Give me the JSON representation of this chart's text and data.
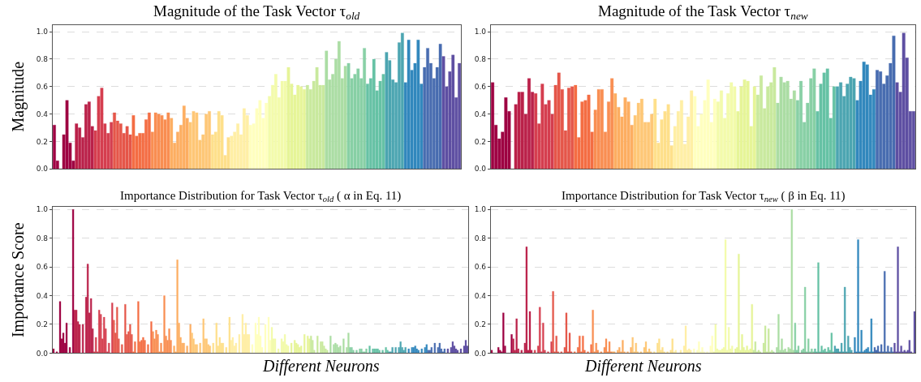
{
  "chart_data": [
    {
      "type": "bar",
      "title": "Magnitude of the Task Vector τ$_{old}$",
      "ylabel": "Magnitude",
      "tick_labels": "y",
      "grid": "y",
      "legend": false,
      "ylim": [
        0,
        1.05
      ],
      "yticks": [
        {
          "value": 0,
          "label": "0.0"
        },
        {
          "value": 0.2,
          "label": "0.2"
        },
        {
          "value": 0.4,
          "label": "0.4"
        },
        {
          "value": 0.6,
          "label": "0.6"
        },
        {
          "value": 0.8,
          "label": "0.8"
        },
        {
          "value": 1.0,
          "label": "1.0"
        }
      ],
      "colors": [
        "#9e0142",
        "#9e0142",
        "#9e0142",
        "#9e0142",
        "#9e0142",
        "#9e0142",
        "#9e0142",
        "#ba2049",
        "#ba2049",
        "#ba2049",
        "#ba2049",
        "#ba2049",
        "#ba2049",
        "#d53e4f",
        "#d53e4f",
        "#d53e4f",
        "#d53e4f",
        "#d53e4f",
        "#d53e4f",
        "#e55649",
        "#e55649",
        "#e55649",
        "#e55649",
        "#e55649",
        "#e55649",
        "#f46d43",
        "#f46d43",
        "#f46d43",
        "#f46d43",
        "#f46d43",
        "#f46d43",
        "#f98e52",
        "#f98e52",
        "#f98e52",
        "#f98e52",
        "#f98e52",
        "#f98e52",
        "#fdae61",
        "#fdae61",
        "#fdae61",
        "#fdae61",
        "#fdae61",
        "#fdae61",
        "#fec776",
        "#fec776",
        "#fec776",
        "#fec776",
        "#fec776",
        "#fec776",
        "#fec776",
        "#fee08b",
        "#fee08b",
        "#fee08b",
        "#fee08b",
        "#fee08b",
        "#fee08b",
        "#ffefa5",
        "#ffefa5",
        "#ffefa5",
        "#ffefa5",
        "#ffefa5",
        "#ffefa5",
        "#ffffbf",
        "#ffffbf",
        "#ffffbf",
        "#ffffbf",
        "#ffffbf",
        "#ffffbf",
        "#f3fbab",
        "#f3fbab",
        "#f3fbab",
        "#f3fbab",
        "#f3fbab",
        "#f3fbab",
        "#e6f598",
        "#e6f598",
        "#e6f598",
        "#e6f598",
        "#e6f598",
        "#e6f598",
        "#c9e99e",
        "#c9e99e",
        "#c9e99e",
        "#c9e99e",
        "#c9e99e",
        "#c9e99e",
        "#abdda4",
        "#abdda4",
        "#abdda4",
        "#abdda4",
        "#abdda4",
        "#abdda4",
        "#abdda4",
        "#88d0a5",
        "#88d0a5",
        "#88d0a5",
        "#88d0a5",
        "#88d0a5",
        "#88d0a5",
        "#66c2a5",
        "#66c2a5",
        "#66c2a5",
        "#66c2a5",
        "#66c2a5",
        "#66c2a5",
        "#4ca5b1",
        "#4ca5b1",
        "#4ca5b1",
        "#4ca5b1",
        "#4ca5b1",
        "#4ca5b1",
        "#3288bd",
        "#3288bd",
        "#3288bd",
        "#3288bd",
        "#3288bd",
        "#3288bd",
        "#486cb0",
        "#486cb0",
        "#486cb0",
        "#486cb0",
        "#486cb0",
        "#486cb0",
        "#5e4fa2",
        "#5e4fa2",
        "#5e4fa2",
        "#5e4fa2",
        "#5e4fa2",
        "#5e4fa2"
      ],
      "categories": [
        null,
        null,
        null,
        null,
        null,
        null,
        null,
        null,
        null,
        null,
        null,
        null,
        null,
        null,
        null,
        null,
        null,
        null,
        null,
        null,
        null,
        null,
        null,
        null,
        null,
        null,
        null,
        null,
        null,
        null,
        null,
        null,
        null,
        null,
        null,
        null,
        null,
        null,
        null,
        null,
        null,
        null,
        null,
        null,
        null,
        null,
        null,
        null,
        null,
        null,
        null,
        null,
        null,
        null,
        null,
        null,
        null,
        null,
        null,
        null,
        null,
        null,
        null,
        null,
        null,
        null,
        null,
        null,
        null,
        null,
        null,
        null,
        null,
        null,
        null,
        null,
        null,
        null,
        null,
        null,
        null,
        null,
        null,
        null,
        null,
        null,
        null,
        null,
        null,
        null,
        null,
        null,
        null,
        null,
        null,
        null,
        null,
        null,
        null,
        null,
        null,
        null,
        null,
        null,
        null,
        null,
        null,
        null,
        null,
        null,
        null,
        null,
        null,
        null,
        null,
        null,
        null,
        null,
        null,
        null,
        null,
        null,
        null,
        null,
        null,
        null,
        null,
        null,
        null
      ],
      "values": [
        0.32,
        0.06,
        0,
        0.25,
        0.5,
        0.19,
        0.06,
        0.33,
        0.3,
        0.23,
        0.47,
        0.49,
        0.31,
        0.28,
        0.53,
        0.59,
        0.33,
        0.26,
        0.34,
        0.41,
        0.35,
        0.33,
        0.26,
        0.31,
        0.25,
        0.39,
        0.24,
        0.26,
        0.26,
        0.36,
        0.41,
        0.27,
        0.41,
        0.4,
        0.39,
        0.36,
        0.41,
        0.37,
        0.19,
        0.27,
        0.32,
        0.46,
        0.37,
        0.34,
        0.42,
        0.41,
        0.21,
        0.25,
        0.4,
        0.42,
        0.25,
        0.27,
        0.42,
        0.39,
        0.1,
        0.23,
        0.24,
        0.27,
        0.33,
        0.25,
        0.44,
        0.39,
        0.32,
        0.33,
        0.44,
        0.5,
        0.37,
        0.48,
        0.53,
        0.61,
        0.69,
        0.52,
        0.64,
        0.64,
        0.74,
        0.62,
        0.54,
        0.61,
        0.6,
        0.58,
        0.61,
        0.58,
        0.64,
        0.74,
        0.61,
        0.61,
        0.86,
        0.65,
        0.69,
        0.8,
        0.93,
        0.66,
        0.75,
        0.77,
        0.66,
        0.69,
        0.73,
        0.66,
        0.88,
        0.62,
        0.66,
        0.8,
        0.57,
        0.64,
        0.69,
        0.85,
        0.79,
        0.65,
        0.63,
        0.92,
        0.99,
        0.63,
        0.94,
        0.72,
        0.77,
        0.94,
        0.62,
        0.74,
        0.88,
        0.77,
        0.66,
        0.74,
        0.91,
        0.82,
        0.6,
        0.71,
        0.83,
        0.52,
        0.77
      ]
    },
    {
      "type": "bar",
      "title": "Magnitude of the Task Vector τ$_{new}$",
      "tick_labels": "y",
      "grid": "y",
      "legend": false,
      "ylim": [
        0,
        1.05
      ],
      "yticks": [
        {
          "value": 0,
          "label": "0.0"
        },
        {
          "value": 0.2,
          "label": "0.2"
        },
        {
          "value": 0.4,
          "label": "0.4"
        },
        {
          "value": 0.6,
          "label": "0.6"
        },
        {
          "value": 0.8,
          "label": "0.8"
        },
        {
          "value": 1.0,
          "label": "1.0"
        }
      ],
      "colors": [
        "#9e0142",
        "#9e0142",
        "#9e0142",
        "#9e0142",
        "#9e0142",
        "#9e0142",
        "#9e0142",
        "#ba2049",
        "#ba2049",
        "#ba2049",
        "#ba2049",
        "#ba2049",
        "#ba2049",
        "#d53e4f",
        "#d53e4f",
        "#d53e4f",
        "#d53e4f",
        "#d53e4f",
        "#d53e4f",
        "#e55649",
        "#e55649",
        "#e55649",
        "#e55649",
        "#e55649",
        "#e55649",
        "#f46d43",
        "#f46d43",
        "#f46d43",
        "#f46d43",
        "#f46d43",
        "#f46d43",
        "#f98e52",
        "#f98e52",
        "#f98e52",
        "#f98e52",
        "#f98e52",
        "#f98e52",
        "#fdae61",
        "#fdae61",
        "#fdae61",
        "#fdae61",
        "#fdae61",
        "#fdae61",
        "#fec776",
        "#fec776",
        "#fec776",
        "#fec776",
        "#fec776",
        "#fec776",
        "#fee08b",
        "#fee08b",
        "#fee08b",
        "#fee08b",
        "#fee08b",
        "#fee08b",
        "#ffefa5",
        "#ffefa5",
        "#ffefa5",
        "#ffefa5",
        "#ffefa5",
        "#ffefa5",
        "#ffffbf",
        "#ffffbf",
        "#ffffbf",
        "#ffffbf",
        "#ffffbf",
        "#ffffbf",
        "#ffffbf",
        "#f3fbab",
        "#f3fbab",
        "#f3fbab",
        "#f3fbab",
        "#f3fbab",
        "#f3fbab",
        "#e6f598",
        "#e6f598",
        "#e6f598",
        "#e6f598",
        "#e6f598",
        "#e6f598",
        "#c9e99e",
        "#c9e99e",
        "#c9e99e",
        "#c9e99e",
        "#c9e99e",
        "#c9e99e",
        "#abdda4",
        "#abdda4",
        "#abdda4",
        "#abdda4",
        "#abdda4",
        "#abdda4",
        "#88d0a5",
        "#88d0a5",
        "#88d0a5",
        "#88d0a5",
        "#88d0a5",
        "#88d0a5",
        "#66c2a5",
        "#66c2a5",
        "#66c2a5",
        "#66c2a5",
        "#66c2a5",
        "#66c2a5",
        "#4ca5b1",
        "#4ca5b1",
        "#4ca5b1",
        "#4ca5b1",
        "#4ca5b1",
        "#4ca5b1",
        "#3288bd",
        "#3288bd",
        "#3288bd",
        "#3288bd",
        "#3288bd",
        "#3288bd",
        "#486cb0",
        "#486cb0",
        "#486cb0",
        "#486cb0",
        "#486cb0",
        "#486cb0",
        "#5e4fa2",
        "#5e4fa2",
        "#5e4fa2",
        "#5e4fa2",
        "#5e4fa2",
        "#5e4fa2"
      ],
      "categories": [
        null,
        null,
        null,
        null,
        null,
        null,
        null,
        null,
        null,
        null,
        null,
        null,
        null,
        null,
        null,
        null,
        null,
        null,
        null,
        null,
        null,
        null,
        null,
        null,
        null,
        null,
        null,
        null,
        null,
        null,
        null,
        null,
        null,
        null,
        null,
        null,
        null,
        null,
        null,
        null,
        null,
        null,
        null,
        null,
        null,
        null,
        null,
        null,
        null,
        null,
        null,
        null,
        null,
        null,
        null,
        null,
        null,
        null,
        null,
        null,
        null,
        null,
        null,
        null,
        null,
        null,
        null,
        null,
        null,
        null,
        null,
        null,
        null,
        null,
        null,
        null,
        null,
        null,
        null,
        null,
        null,
        null,
        null,
        null,
        null,
        null,
        null,
        null,
        null,
        null,
        null,
        null,
        null,
        null,
        null,
        null,
        null,
        null,
        null,
        null,
        null,
        null,
        null,
        null,
        null,
        null,
        null,
        null,
        null,
        null,
        null,
        null,
        null,
        null,
        null,
        null,
        null,
        null,
        null,
        null,
        null,
        null,
        null,
        null,
        null,
        null,
        null,
        null
      ],
      "values": [
        0.63,
        0.32,
        0.22,
        0.27,
        0.52,
        0.42,
        0,
        0.47,
        0.56,
        0.56,
        0.4,
        0.66,
        0.56,
        0.55,
        0.33,
        0.62,
        0.47,
        0.5,
        0.4,
        0.61,
        0.7,
        0.58,
        0.28,
        0.59,
        0.6,
        0.61,
        0.23,
        0.49,
        0.5,
        0.54,
        0.27,
        0.43,
        0.58,
        0.58,
        0.27,
        0.49,
        0.66,
        0.55,
        0.45,
        0.38,
        0.52,
        0.49,
        0.32,
        0.39,
        0.48,
        0.51,
        0.34,
        0.34,
        0.4,
        0.51,
        0.19,
        0.36,
        0.42,
        0.47,
        0.17,
        0.31,
        0.42,
        0.5,
        0.18,
        0.38,
        0.57,
        0.53,
        0.31,
        0.4,
        0.5,
        0.65,
        0.34,
        0.51,
        0.49,
        0.57,
        0.37,
        0.55,
        0.63,
        0.6,
        0.42,
        0.6,
        0.65,
        0.64,
        0.31,
        0.6,
        0.54,
        0.68,
        0.44,
        0.6,
        0.63,
        0.74,
        0.48,
        0.67,
        0.63,
        0.64,
        0.51,
        0.57,
        0.5,
        0.64,
        0.34,
        0.48,
        0.66,
        0.73,
        0.42,
        0.62,
        0.7,
        0.73,
        0.37,
        0.6,
        0.6,
        0.63,
        0.53,
        0.62,
        0.67,
        0.66,
        0.5,
        0.64,
        0.78,
        0.76,
        0.54,
        0.58,
        0.72,
        0.71,
        0.62,
        0.68,
        0.77,
        0.97,
        0.63,
        0.56,
        0.99,
        0.81,
        0.42,
        0.42
      ]
    },
    {
      "type": "bar",
      "title": "Importance Distribution for Task Vector τ$_{old}$ ( α in Eq. 11)",
      "ylabel": "Importance Score",
      "xlabel": "Different Neurons",
      "tick_labels": "y",
      "grid": "y",
      "legend": false,
      "ylim": [
        0,
        1.02
      ],
      "yticks": [
        {
          "value": 0,
          "label": "0.0"
        },
        {
          "value": 0.2,
          "label": "0.2"
        },
        {
          "value": 0.4,
          "label": "0.4"
        },
        {
          "value": 0.6,
          "label": "0.6"
        },
        {
          "value": 0.8,
          "label": "0.8"
        },
        {
          "value": 1.0,
          "label": "1.0"
        }
      ],
      "colors": [
        "#9e0142",
        "#9e0142",
        "#9e0142",
        "#9e0142",
        "#9e0142",
        "#9e0142",
        "#9e0142",
        "#9e0142",
        "#9e0142",
        "#9e0142",
        "#9e0142",
        "#9e0142",
        "#9e0142",
        "#ba2049",
        "#ba2049",
        "#ba2049",
        "#ba2049",
        "#ba2049",
        "#ba2049",
        "#ba2049",
        "#ba2049",
        "#ba2049",
        "#ba2049",
        "#ba2049",
        "#ba2049",
        "#d53e4f",
        "#d53e4f",
        "#d53e4f",
        "#d53e4f",
        "#d53e4f",
        "#d53e4f",
        "#d53e4f",
        "#d53e4f",
        "#d53e4f",
        "#d53e4f",
        "#d53e4f",
        "#d53e4f",
        "#e55649",
        "#e55649",
        "#e55649",
        "#e55649",
        "#e55649",
        "#e55649",
        "#e55649",
        "#e55649",
        "#e55649",
        "#e55649",
        "#e55649",
        "#e55649",
        "#f46d43",
        "#f46d43",
        "#f46d43",
        "#f46d43",
        "#f46d43",
        "#f46d43",
        "#f46d43",
        "#f46d43",
        "#f46d43",
        "#f46d43",
        "#f46d43",
        "#f46d43",
        "#f98e52",
        "#f98e52",
        "#f98e52",
        "#f98e52",
        "#f98e52",
        "#f98e52",
        "#f98e52",
        "#f98e52",
        "#f98e52",
        "#f98e52",
        "#f98e52",
        "#f98e52",
        "#fdae61",
        "#fdae61",
        "#fdae61",
        "#fdae61",
        "#fdae61",
        "#fdae61",
        "#fdae61",
        "#fdae61",
        "#fdae61",
        "#fdae61",
        "#fdae61",
        "#fdae61",
        "#fec776",
        "#fec776",
        "#fec776",
        "#fec776",
        "#fec776",
        "#fec776",
        "#fec776",
        "#fec776",
        "#fec776",
        "#fec776",
        "#fec776",
        "#fec776",
        "#fee08b",
        "#fee08b",
        "#fee08b",
        "#fee08b",
        "#fee08b",
        "#fee08b",
        "#fee08b",
        "#fee08b",
        "#fee08b",
        "#fee08b",
        "#fee08b",
        "#fee08b",
        "#ffefa5",
        "#ffefa5",
        "#ffefa5",
        "#ffefa5",
        "#ffefa5",
        "#ffefa5",
        "#ffefa5",
        "#ffefa5",
        "#ffefa5",
        "#ffefa5",
        "#ffefa5",
        "#ffefa5",
        "#ffffbf",
        "#ffffbf",
        "#ffffbf",
        "#ffffbf",
        "#ffffbf",
        "#ffffbf",
        "#ffffbf",
        "#ffffbf",
        "#ffffbf",
        "#ffffbf",
        "#ffffbf",
        "#ffffbf",
        "#ffffbf",
        "#f3fbab",
        "#f3fbab",
        "#f3fbab",
        "#f3fbab",
        "#f3fbab",
        "#f3fbab",
        "#f3fbab",
        "#f3fbab",
        "#f3fbab",
        "#f3fbab",
        "#f3fbab",
        "#f3fbab",
        "#e6f598",
        "#e6f598",
        "#e6f598",
        "#e6f598",
        "#e6f598",
        "#e6f598",
        "#e6f598",
        "#e6f598",
        "#e6f598",
        "#e6f598",
        "#e6f598",
        "#e6f598",
        "#c9e99e",
        "#c9e99e",
        "#c9e99e",
        "#c9e99e",
        "#c9e99e",
        "#c9e99e",
        "#c9e99e",
        "#c9e99e",
        "#c9e99e",
        "#c9e99e",
        "#c9e99e",
        "#c9e99e",
        "#abdda4",
        "#abdda4",
        "#abdda4",
        "#abdda4",
        "#abdda4",
        "#abdda4",
        "#abdda4",
        "#abdda4",
        "#abdda4",
        "#abdda4",
        "#abdda4",
        "#abdda4",
        "#88d0a5",
        "#88d0a5",
        "#88d0a5",
        "#88d0a5",
        "#88d0a5",
        "#88d0a5",
        "#88d0a5",
        "#88d0a5",
        "#88d0a5",
        "#88d0a5",
        "#88d0a5",
        "#88d0a5",
        "#66c2a5",
        "#66c2a5",
        "#66c2a5",
        "#66c2a5",
        "#66c2a5",
        "#66c2a5",
        "#66c2a5",
        "#66c2a5",
        "#66c2a5",
        "#66c2a5",
        "#66c2a5",
        "#66c2a5",
        "#4ca5b1",
        "#4ca5b1",
        "#4ca5b1",
        "#4ca5b1",
        "#4ca5b1",
        "#4ca5b1",
        "#4ca5b1",
        "#4ca5b1",
        "#4ca5b1",
        "#4ca5b1",
        "#4ca5b1",
        "#4ca5b1",
        "#3288bd",
        "#3288bd",
        "#3288bd",
        "#3288bd",
        "#3288bd",
        "#3288bd",
        "#3288bd",
        "#3288bd",
        "#3288bd",
        "#3288bd",
        "#3288bd",
        "#3288bd",
        "#486cb0",
        "#486cb0",
        "#486cb0",
        "#486cb0",
        "#486cb0",
        "#486cb0",
        "#486cb0",
        "#486cb0",
        "#486cb0",
        "#486cb0",
        "#486cb0",
        "#486cb0",
        "#5e4fa2",
        "#5e4fa2",
        "#5e4fa2",
        "#5e4fa2",
        "#5e4fa2",
        "#5e4fa2",
        "#5e4fa2",
        "#5e4fa2",
        "#5e4fa2",
        "#5e4fa2",
        "#5e4fa2",
        "#5e4fa2",
        "#5e4fa2"
      ],
      "categories": [
        null,
        null,
        null,
        null,
        null,
        null,
        null,
        null,
        null,
        null,
        null,
        null,
        null,
        null,
        null,
        null,
        null,
        null,
        null,
        null,
        null,
        null,
        null,
        null,
        null,
        null,
        null,
        null,
        null,
        null,
        null,
        null,
        null,
        null,
        null,
        null,
        null,
        null,
        null,
        null,
        null,
        null,
        null,
        null,
        null,
        null,
        null,
        null,
        null,
        null,
        null,
        null,
        null,
        null,
        null,
        null,
        null,
        null,
        null,
        null,
        null,
        null,
        null,
        null,
        null,
        null,
        null,
        null,
        null,
        null,
        null,
        null,
        null,
        null,
        null,
        null,
        null,
        null,
        null,
        null,
        null,
        null,
        null,
        null,
        null,
        null,
        null,
        null,
        null,
        null,
        null,
        null,
        null,
        null,
        null,
        null,
        null,
        null,
        null,
        null,
        null,
        null,
        null,
        null,
        null,
        null,
        null,
        null,
        null,
        null,
        null,
        null,
        null,
        null,
        null,
        null,
        null,
        null,
        null,
        null,
        null,
        null,
        null,
        null,
        null,
        null,
        null,
        null,
        null,
        null,
        null,
        null,
        null,
        null,
        null,
        null,
        null,
        null,
        null,
        null,
        null,
        null,
        null,
        null,
        null,
        null,
        null,
        null,
        null,
        null,
        null,
        null,
        null,
        null,
        null,
        null,
        null,
        null,
        null,
        null,
        null,
        null,
        null,
        null,
        null,
        null,
        null,
        null,
        null,
        null,
        null,
        null,
        null,
        null,
        null,
        null,
        null,
        null,
        null,
        null,
        null,
        null,
        null,
        null,
        null,
        null,
        null,
        null,
        null,
        null,
        null,
        null,
        null,
        null,
        null,
        null,
        null,
        null,
        null,
        null,
        null,
        null,
        null,
        null,
        null,
        null,
        null,
        null,
        null,
        null,
        null,
        null,
        null,
        null,
        null,
        null,
        null,
        null,
        null,
        null,
        null,
        null,
        null,
        null,
        null,
        null,
        null,
        null,
        null,
        null,
        null,
        null,
        null,
        null,
        null,
        null,
        null,
        null,
        null,
        null,
        null,
        null,
        null,
        null,
        null,
        null,
        null,
        null,
        null,
        null,
        null,
        null,
        null,
        null,
        null
      ],
      "values": [
        0.03,
        0,
        0.01,
        0,
        0.36,
        0.1,
        0.14,
        0.07,
        0.21,
        0,
        0.04,
        0,
        1.0,
        0.3,
        0.3,
        0.22,
        0.2,
        0,
        0.2,
        0,
        0.39,
        0.62,
        0.28,
        0.38,
        0.17,
        0.01,
        0.11,
        0.01,
        0.3,
        0.27,
        0.1,
        0.25,
        0.17,
        0.01,
        0.07,
        0,
        0.35,
        0.23,
        0.14,
        0.32,
        0.1,
        0,
        0.06,
        0,
        0.34,
        0.13,
        0.15,
        0.2,
        0.13,
        0.01,
        0.08,
        0,
        0.36,
        0.08,
        0.09,
        0.11,
        0.09,
        0,
        0.06,
        0,
        0.22,
        0.15,
        0.1,
        0.16,
        0.13,
        0.01,
        0.07,
        0.01,
        0.4,
        0.12,
        0.09,
        0.17,
        0.09,
        0,
        0.05,
        0.01,
        0.65,
        0.21,
        0.11,
        0.07,
        0.07,
        0,
        0.05,
        0,
        0.2,
        0.14,
        0.1,
        0.06,
        0.06,
        0,
        0.07,
        0,
        0.24,
        0.1,
        0.1,
        0.06,
        0.05,
        0,
        0.07,
        0,
        0.21,
        0.05,
        0.11,
        0.07,
        0.07,
        0,
        0.04,
        0,
        0.25,
        0.09,
        0.11,
        0.05,
        0.07,
        0,
        0.13,
        0,
        0.27,
        0.13,
        0.21,
        0.13,
        0.13,
        0,
        0.06,
        0,
        0.21,
        0.13,
        0.25,
        0.12,
        0.04,
        0,
        0.2,
        0,
        0.25,
        0.09,
        0.18,
        0.1,
        0.1,
        0,
        0.03,
        0,
        0.1,
        0.08,
        0.13,
        0.06,
        0.05,
        0,
        0.07,
        0,
        0.09,
        0.07,
        0.06,
        0.04,
        0.05,
        0,
        0.13,
        0,
        0.12,
        0.1,
        0.12,
        0.09,
        0.02,
        0,
        0.12,
        0,
        0.08,
        0.08,
        0.05,
        0.03,
        0.02,
        0,
        0.12,
        0,
        0.06,
        0.07,
        0.06,
        0.04,
        0.05,
        0,
        0.1,
        0,
        0.04,
        0.14,
        0.04,
        0.04,
        0.02,
        0,
        0.02,
        0,
        0.03,
        0.03,
        0.01,
        0.01,
        0.03,
        0,
        0.05,
        0,
        0.03,
        0.03,
        0.03,
        0.03,
        0.02,
        0,
        0.02,
        0,
        0.04,
        0.02,
        0.01,
        0.01,
        0.04,
        0,
        0.04,
        0,
        0.04,
        0.08,
        0.04,
        0.02,
        0.04,
        0,
        0.03,
        0,
        0.04,
        0.04,
        0.05,
        0.03,
        0.02,
        0,
        0.03,
        0,
        0.04,
        0.06,
        0.02,
        0.02,
        0.04,
        0,
        0.07,
        0,
        0.04,
        0.07,
        0.03,
        0.01,
        0.03,
        0,
        0.03,
        0,
        0.04,
        0.08,
        0.05,
        0.03,
        0.02,
        0,
        0.03,
        0,
        0.05,
        0.09,
        0.05
      ]
    },
    {
      "type": "bar",
      "title": "Importance Distribution for Task Vector τ$_{new}$ ( β in Eq. 11)",
      "xlabel": "Different Neurons",
      "tick_labels": "y",
      "grid": "y",
      "legend": false,
      "ylim": [
        0,
        1.02
      ],
      "yticks": [
        {
          "value": 0,
          "label": "0.0"
        },
        {
          "value": 0.2,
          "label": "0.2"
        },
        {
          "value": 0.4,
          "label": "0.4"
        },
        {
          "value": 0.6,
          "label": "0.6"
        },
        {
          "value": 0.8,
          "label": "0.8"
        },
        {
          "value": 1.0,
          "label": "1.0"
        }
      ],
      "colors": [
        "#9e0142",
        "#9e0142",
        "#9e0142",
        "#9e0142",
        "#9e0142",
        "#9e0142",
        "#9e0142",
        "#9e0142",
        "#9e0142",
        "#9e0142",
        "#9e0142",
        "#9e0142",
        "#9e0142",
        "#ba2049",
        "#ba2049",
        "#ba2049",
        "#ba2049",
        "#ba2049",
        "#ba2049",
        "#ba2049",
        "#ba2049",
        "#ba2049",
        "#ba2049",
        "#ba2049",
        "#ba2049",
        "#d53e4f",
        "#d53e4f",
        "#d53e4f",
        "#d53e4f",
        "#d53e4f",
        "#d53e4f",
        "#d53e4f",
        "#d53e4f",
        "#d53e4f",
        "#d53e4f",
        "#d53e4f",
        "#d53e4f",
        "#e55649",
        "#e55649",
        "#e55649",
        "#e55649",
        "#e55649",
        "#e55649",
        "#e55649",
        "#e55649",
        "#e55649",
        "#e55649",
        "#e55649",
        "#e55649",
        "#f46d43",
        "#f46d43",
        "#f46d43",
        "#f46d43",
        "#f46d43",
        "#f46d43",
        "#f46d43",
        "#f46d43",
        "#f46d43",
        "#f46d43",
        "#f46d43",
        "#f46d43",
        "#f98e52",
        "#f98e52",
        "#f98e52",
        "#f98e52",
        "#f98e52",
        "#f98e52",
        "#f98e52",
        "#f98e52",
        "#f98e52",
        "#f98e52",
        "#f98e52",
        "#f98e52",
        "#fdae61",
        "#fdae61",
        "#fdae61",
        "#fdae61",
        "#fdae61",
        "#fdae61",
        "#fdae61",
        "#fdae61",
        "#fdae61",
        "#fdae61",
        "#fdae61",
        "#fdae61",
        "#fec776",
        "#fec776",
        "#fec776",
        "#fec776",
        "#fec776",
        "#fec776",
        "#fec776",
        "#fec776",
        "#fec776",
        "#fec776",
        "#fec776",
        "#fec776",
        "#fec776",
        "#fee08b",
        "#fee08b",
        "#fee08b",
        "#fee08b",
        "#fee08b",
        "#fee08b",
        "#fee08b",
        "#fee08b",
        "#fee08b",
        "#fee08b",
        "#fee08b",
        "#fee08b",
        "#ffefa5",
        "#ffefa5",
        "#ffefa5",
        "#ffefa5",
        "#ffefa5",
        "#ffefa5",
        "#ffefa5",
        "#ffefa5",
        "#ffefa5",
        "#ffefa5",
        "#ffefa5",
        "#ffefa5",
        "#ffffbf",
        "#ffffbf",
        "#ffffbf",
        "#ffffbf",
        "#ffffbf",
        "#ffffbf",
        "#ffffbf",
        "#ffffbf",
        "#ffffbf",
        "#ffffbf",
        "#ffffbf",
        "#ffffbf",
        "#f3fbab",
        "#f3fbab",
        "#f3fbab",
        "#f3fbab",
        "#f3fbab",
        "#f3fbab",
        "#f3fbab",
        "#f3fbab",
        "#f3fbab",
        "#f3fbab",
        "#f3fbab",
        "#f3fbab",
        "#e6f598",
        "#e6f598",
        "#e6f598",
        "#e6f598",
        "#e6f598",
        "#e6f598",
        "#e6f598",
        "#e6f598",
        "#e6f598",
        "#e6f598",
        "#e6f598",
        "#e6f598",
        "#c9e99e",
        "#c9e99e",
        "#c9e99e",
        "#c9e99e",
        "#c9e99e",
        "#c9e99e",
        "#c9e99e",
        "#c9e99e",
        "#c9e99e",
        "#c9e99e",
        "#c9e99e",
        "#c9e99e",
        "#abdda4",
        "#abdda4",
        "#abdda4",
        "#abdda4",
        "#abdda4",
        "#abdda4",
        "#abdda4",
        "#abdda4",
        "#abdda4",
        "#abdda4",
        "#abdda4",
        "#abdda4",
        "#abdda4",
        "#88d0a5",
        "#88d0a5",
        "#88d0a5",
        "#88d0a5",
        "#88d0a5",
        "#88d0a5",
        "#88d0a5",
        "#88d0a5",
        "#88d0a5",
        "#88d0a5",
        "#88d0a5",
        "#88d0a5",
        "#66c2a5",
        "#66c2a5",
        "#66c2a5",
        "#66c2a5",
        "#66c2a5",
        "#66c2a5",
        "#66c2a5",
        "#66c2a5",
        "#66c2a5",
        "#66c2a5",
        "#66c2a5",
        "#66c2a5",
        "#4ca5b1",
        "#4ca5b1",
        "#4ca5b1",
        "#4ca5b1",
        "#4ca5b1",
        "#4ca5b1",
        "#4ca5b1",
        "#4ca5b1",
        "#4ca5b1",
        "#4ca5b1",
        "#4ca5b1",
        "#4ca5b1",
        "#3288bd",
        "#3288bd",
        "#3288bd",
        "#3288bd",
        "#3288bd",
        "#3288bd",
        "#3288bd",
        "#3288bd",
        "#3288bd",
        "#3288bd",
        "#3288bd",
        "#3288bd",
        "#486cb0",
        "#486cb0",
        "#486cb0",
        "#486cb0",
        "#486cb0",
        "#486cb0",
        "#486cb0",
        "#486cb0",
        "#486cb0",
        "#486cb0",
        "#486cb0",
        "#486cb0",
        "#5e4fa2",
        "#5e4fa2",
        "#5e4fa2",
        "#5e4fa2",
        "#5e4fa2",
        "#5e4fa2",
        "#5e4fa2",
        "#5e4fa2",
        "#5e4fa2",
        "#5e4fa2",
        "#5e4fa2",
        "#5e4fa2",
        "#5e4fa2"
      ],
      "categories": [
        null,
        null,
        null,
        null,
        null,
        null,
        null,
        null,
        null,
        null,
        null,
        null,
        null,
        null,
        null,
        null,
        null,
        null,
        null,
        null,
        null,
        null,
        null,
        null,
        null,
        null,
        null,
        null,
        null,
        null,
        null,
        null,
        null,
        null,
        null,
        null,
        null,
        null,
        null,
        null,
        null,
        null,
        null,
        null,
        null,
        null,
        null,
        null,
        null,
        null,
        null,
        null,
        null,
        null,
        null,
        null,
        null,
        null,
        null,
        null,
        null,
        null,
        null,
        null,
        null,
        null,
        null,
        null,
        null,
        null,
        null,
        null,
        null,
        null,
        null,
        null,
        null,
        null,
        null,
        null,
        null,
        null,
        null,
        null,
        null,
        null,
        null,
        null,
        null,
        null,
        null,
        null,
        null,
        null,
        null,
        null,
        null,
        null,
        null,
        null,
        null,
        null,
        null,
        null,
        null,
        null,
        null,
        null,
        null,
        null,
        null,
        null,
        null,
        null,
        null,
        null,
        null,
        null,
        null,
        null,
        null,
        null,
        null,
        null,
        null,
        null,
        null,
        null,
        null,
        null,
        null,
        null,
        null,
        null,
        null,
        null,
        null,
        null,
        null,
        null,
        null,
        null,
        null,
        null,
        null,
        null,
        null,
        null,
        null,
        null,
        null,
        null,
        null,
        null,
        null,
        null,
        null,
        null,
        null,
        null,
        null,
        null,
        null,
        null,
        null,
        null,
        null,
        null,
        null,
        null,
        null,
        null,
        null,
        null,
        null,
        null,
        null,
        null,
        null,
        null,
        null,
        null,
        null,
        null,
        null,
        null,
        null,
        null,
        null,
        null,
        null,
        null,
        null,
        null,
        null,
        null,
        null,
        null,
        null,
        null,
        null,
        null,
        null,
        null,
        null,
        null,
        null,
        null,
        null,
        null,
        null,
        null,
        null,
        null,
        null,
        null,
        null,
        null,
        null,
        null,
        null,
        null,
        null,
        null,
        null,
        null,
        null,
        null,
        null,
        null,
        null,
        null,
        null,
        null,
        null,
        null,
        null,
        null,
        null,
        null,
        null,
        null,
        null,
        null,
        null,
        null,
        null,
        null,
        null,
        null,
        null,
        null,
        null,
        null,
        null,
        null
      ],
      "values": [
        0.02,
        0,
        0,
        0,
        0.04,
        0.02,
        0.01,
        0.28,
        0.05,
        0,
        0,
        0,
        0.13,
        0.1,
        0.02,
        0.24,
        0.03,
        0,
        0.02,
        0,
        0.07,
        0.74,
        0.02,
        0.29,
        0.02,
        0,
        0.02,
        0,
        0.05,
        0.32,
        0.01,
        0.21,
        0.02,
        0,
        0.01,
        0,
        0.08,
        0.43,
        0.01,
        0.12,
        0.01,
        0,
        0.01,
        0,
        0.04,
        0.28,
        0.01,
        0.14,
        0.01,
        0,
        0.01,
        0,
        0.04,
        0.12,
        0.01,
        0.12,
        0.02,
        0,
        0.01,
        0,
        0.06,
        0.3,
        0.01,
        0.07,
        0.02,
        0,
        0.01,
        0,
        0.04,
        0.1,
        0.01,
        0.08,
        0.01,
        0.01,
        0.01,
        0,
        0.02,
        0.04,
        0.01,
        0.09,
        0.01,
        0,
        0.01,
        0,
        0.04,
        0.11,
        0.01,
        0.07,
        0.01,
        0,
        0.01,
        0,
        0.04,
        0.08,
        0.01,
        0.03,
        0.01,
        0,
        0.01,
        0,
        0.07,
        0.1,
        0.02,
        0.04,
        0.01,
        0,
        0.01,
        0,
        0.02,
        0.1,
        0.01,
        0.02,
        0,
        0,
        0.02,
        0,
        0.05,
        0.19,
        0.02,
        0.03,
        0.02,
        0,
        0.03,
        0,
        0.02,
        0.08,
        0.01,
        0.04,
        0.01,
        0,
        0.01,
        0,
        0.05,
        0.12,
        0.01,
        0.2,
        0.03,
        0.02,
        0.02,
        0.03,
        0.04,
        0.79,
        0.02,
        0.18,
        0.03,
        0.05,
        0,
        0.03,
        0.04,
        0.69,
        0.02,
        0.13,
        0.04,
        0.02,
        0.05,
        0.02,
        0.03,
        0.34,
        0.02,
        0.08,
        0.01,
        0.02,
        0.01,
        0,
        0.07,
        0.19,
        0.01,
        0.17,
        0.01,
        0.02,
        0.01,
        0,
        0.04,
        0.27,
        0.02,
        0.1,
        0.02,
        0.03,
        0.01,
        0.04,
        0.03,
        1.0,
        0.02,
        0.21,
        0.02,
        0.05,
        0,
        0.02,
        0.03,
        0.46,
        0.01,
        0.1,
        0.01,
        0.03,
        0.01,
        0.03,
        0.01,
        0.63,
        0.01,
        0.05,
        0.02,
        0.03,
        0.01,
        0.04,
        0.02,
        0.14,
        0.01,
        0.05,
        0.03,
        0.03,
        0.01,
        0.07,
        0.01,
        0.46,
        0.01,
        0.12,
        0.04,
        0.02,
        0,
        0.11,
        0.01,
        0.79,
        0.01,
        0.16,
        0.01,
        0.02,
        0.03,
        0.04,
        0.01,
        0.24,
        0.01,
        0.04,
        0.02,
        0.05,
        0.01,
        0.06,
        0.01,
        0.57,
        0.01,
        0.05,
        0.01,
        0.04,
        0.01,
        0.07,
        0.01,
        0.74,
        0.01,
        0.05,
        0.01,
        0.02,
        0.01,
        0.02,
        0.09,
        0.01,
        0,
        0.29
      ]
    }
  ]
}
